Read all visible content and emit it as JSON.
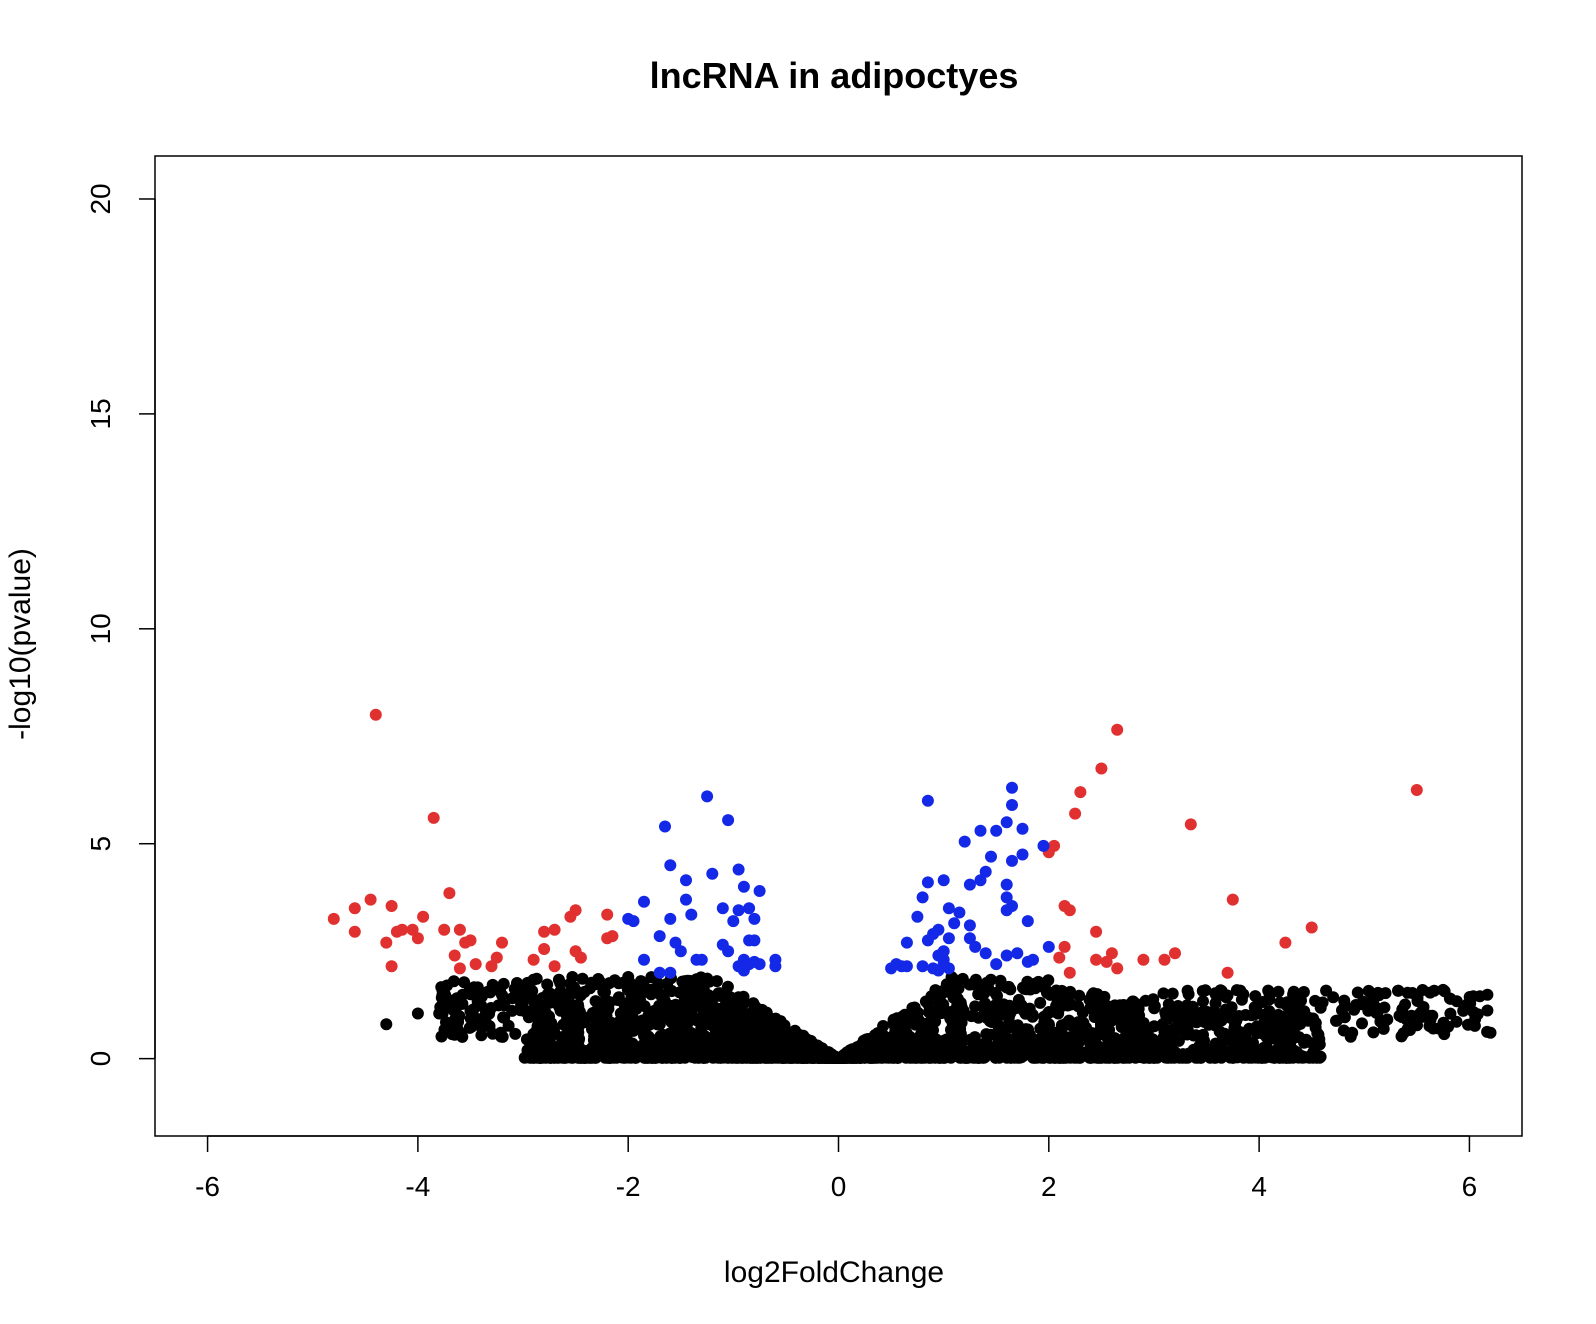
{
  "chart_data": {
    "type": "scatter",
    "title": "lncRNA in adipoctyes",
    "xlabel": "log2FoldChange",
    "ylabel": "-log10(pvalue)",
    "xlim": [
      -6.5,
      6.5
    ],
    "ylim": [
      -1.8,
      21
    ],
    "xticks": [
      -6,
      -4,
      -2,
      0,
      2,
      4,
      6
    ],
    "xtick_labels": [
      "-6",
      "-4",
      "-2",
      "0",
      "2",
      "4",
      "6"
    ],
    "yticks": [
      0,
      5,
      10,
      15,
      20
    ],
    "ytick_labels": [
      "0",
      "5",
      "10",
      "15",
      "20"
    ],
    "grid": false,
    "legend": "none",
    "colors": {
      "red": "#e03030",
      "blue": "#1428e8",
      "black": "#000000"
    },
    "series": [
      {
        "color": "red",
        "points": [
          [
            -4.4,
            8.0
          ],
          [
            -3.85,
            5.6
          ],
          [
            -4.45,
            3.7
          ],
          [
            -4.6,
            3.5
          ],
          [
            -4.25,
            3.55
          ],
          [
            -4.8,
            3.25
          ],
          [
            -4.6,
            2.95
          ],
          [
            -4.15,
            3.0
          ],
          [
            -4.05,
            3.0
          ],
          [
            -3.95,
            3.3
          ],
          [
            -4.2,
            2.95
          ],
          [
            -4.3,
            2.7
          ],
          [
            -4.25,
            2.15
          ],
          [
            -4.0,
            2.8
          ],
          [
            -3.75,
            3.0
          ],
          [
            -3.6,
            3.0
          ],
          [
            -3.5,
            2.75
          ],
          [
            -3.55,
            2.7
          ],
          [
            -3.65,
            2.4
          ],
          [
            -3.6,
            2.1
          ],
          [
            -3.7,
            3.85
          ],
          [
            -3.45,
            2.2
          ],
          [
            -3.25,
            2.35
          ],
          [
            -3.3,
            2.15
          ],
          [
            -3.2,
            2.7
          ],
          [
            -2.8,
            2.95
          ],
          [
            -2.7,
            3.0
          ],
          [
            -2.9,
            2.3
          ],
          [
            -2.8,
            2.55
          ],
          [
            -2.7,
            2.15
          ],
          [
            -2.5,
            3.45
          ],
          [
            -2.55,
            3.3
          ],
          [
            -2.5,
            2.5
          ],
          [
            -2.45,
            2.35
          ],
          [
            -2.2,
            3.35
          ],
          [
            -2.15,
            2.85
          ],
          [
            -2.2,
            2.8
          ],
          [
            2.65,
            7.65
          ],
          [
            2.5,
            6.75
          ],
          [
            2.3,
            6.2
          ],
          [
            2.25,
            5.7
          ],
          [
            2.05,
            4.95
          ],
          [
            2.0,
            4.8
          ],
          [
            5.5,
            6.25
          ],
          [
            3.35,
            5.45
          ],
          [
            3.75,
            3.7
          ],
          [
            2.15,
            3.55
          ],
          [
            2.2,
            3.45
          ],
          [
            2.45,
            2.95
          ],
          [
            2.15,
            2.6
          ],
          [
            2.1,
            2.35
          ],
          [
            2.45,
            2.3
          ],
          [
            2.6,
            2.45
          ],
          [
            2.55,
            2.25
          ],
          [
            2.65,
            2.1
          ],
          [
            2.2,
            2.0
          ],
          [
            2.9,
            2.3
          ],
          [
            3.1,
            2.3
          ],
          [
            3.2,
            2.45
          ],
          [
            3.7,
            2.0
          ],
          [
            4.25,
            2.7
          ],
          [
            4.5,
            3.05
          ]
        ]
      },
      {
        "color": "blue",
        "points": [
          [
            -1.25,
            6.1
          ],
          [
            -1.05,
            5.55
          ],
          [
            -1.65,
            5.4
          ],
          [
            -1.6,
            4.5
          ],
          [
            -1.45,
            4.15
          ],
          [
            -1.2,
            4.3
          ],
          [
            -0.95,
            4.4
          ],
          [
            -0.9,
            4.0
          ],
          [
            -0.75,
            3.9
          ],
          [
            -1.45,
            3.7
          ],
          [
            -1.1,
            3.5
          ],
          [
            -0.95,
            3.45
          ],
          [
            -0.85,
            3.5
          ],
          [
            -1.85,
            3.65
          ],
          [
            -2.0,
            3.25
          ],
          [
            -1.95,
            3.2
          ],
          [
            -1.4,
            3.35
          ],
          [
            -1.6,
            3.25
          ],
          [
            -1.0,
            3.2
          ],
          [
            -0.8,
            3.25
          ],
          [
            -1.7,
            2.85
          ],
          [
            -1.55,
            2.7
          ],
          [
            -1.5,
            2.5
          ],
          [
            -1.35,
            2.3
          ],
          [
            -1.3,
            2.3
          ],
          [
            -1.1,
            2.65
          ],
          [
            -1.05,
            2.5
          ],
          [
            -0.85,
            2.75
          ],
          [
            -0.8,
            2.75
          ],
          [
            -1.85,
            2.3
          ],
          [
            -1.7,
            2.0
          ],
          [
            -1.6,
            2.0
          ],
          [
            -0.9,
            2.3
          ],
          [
            -0.85,
            2.2
          ],
          [
            -0.8,
            2.25
          ],
          [
            -0.95,
            2.15
          ],
          [
            -0.9,
            2.05
          ],
          [
            -0.75,
            2.2
          ],
          [
            -0.6,
            2.3
          ],
          [
            -0.6,
            2.15
          ],
          [
            1.65,
            6.3
          ],
          [
            1.65,
            5.9
          ],
          [
            0.85,
            6.0
          ],
          [
            1.6,
            5.5
          ],
          [
            1.75,
            5.35
          ],
          [
            1.5,
            5.3
          ],
          [
            1.35,
            5.3
          ],
          [
            1.2,
            5.05
          ],
          [
            1.95,
            4.95
          ],
          [
            1.45,
            4.7
          ],
          [
            1.75,
            4.75
          ],
          [
            1.65,
            4.6
          ],
          [
            1.4,
            4.35
          ],
          [
            1.35,
            4.15
          ],
          [
            1.6,
            4.05
          ],
          [
            0.85,
            4.1
          ],
          [
            1.0,
            4.15
          ],
          [
            1.25,
            4.05
          ],
          [
            1.6,
            3.75
          ],
          [
            0.8,
            3.75
          ],
          [
            1.05,
            3.5
          ],
          [
            1.15,
            3.4
          ],
          [
            1.25,
            3.1
          ],
          [
            1.6,
            3.45
          ],
          [
            1.65,
            3.55
          ],
          [
            0.75,
            3.3
          ],
          [
            0.9,
            2.9
          ],
          [
            0.95,
            3.0
          ],
          [
            1.1,
            3.15
          ],
          [
            1.25,
            2.8
          ],
          [
            1.3,
            2.6
          ],
          [
            0.65,
            2.7
          ],
          [
            0.85,
            2.75
          ],
          [
            1.05,
            2.8
          ],
          [
            1.0,
            2.5
          ],
          [
            1.4,
            2.45
          ],
          [
            1.6,
            2.4
          ],
          [
            1.7,
            2.45
          ],
          [
            1.8,
            3.2
          ],
          [
            2.0,
            2.6
          ],
          [
            1.8,
            2.25
          ],
          [
            0.95,
            2.4
          ],
          [
            1.0,
            2.3
          ],
          [
            0.9,
            2.1
          ],
          [
            0.8,
            2.15
          ],
          [
            0.65,
            2.15
          ],
          [
            0.55,
            2.2
          ],
          [
            0.6,
            2.15
          ],
          [
            0.5,
            2.1
          ],
          [
            1.0,
            2.2
          ],
          [
            1.05,
            2.1
          ],
          [
            0.95,
            2.05
          ],
          [
            1.5,
            2.2
          ],
          [
            1.85,
            2.3
          ]
        ]
      }
    ]
  }
}
